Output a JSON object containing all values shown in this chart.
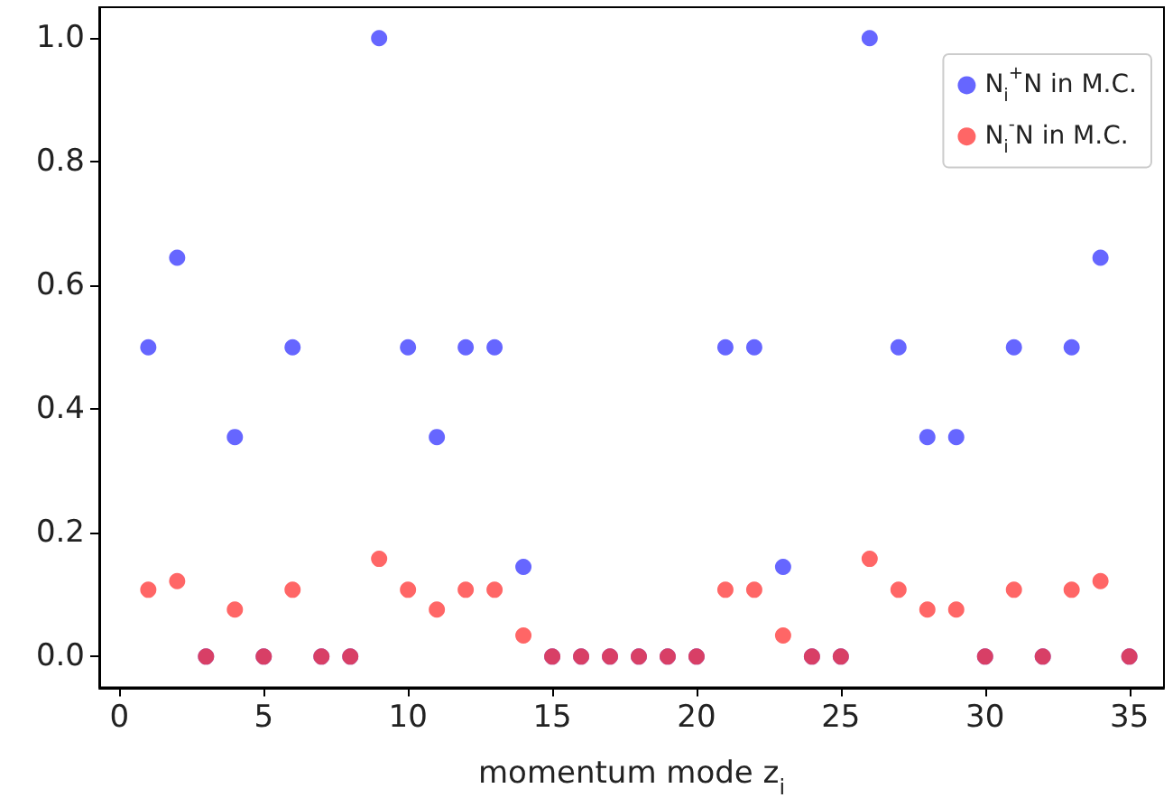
{
  "chart_data": {
    "type": "scatter",
    "xlabel": "momentum mode z$_{i}$",
    "x": [
      1,
      2,
      3,
      4,
      5,
      6,
      7,
      8,
      9,
      10,
      11,
      12,
      13,
      14,
      15,
      16,
      17,
      18,
      19,
      20,
      21,
      22,
      23,
      24,
      25,
      26,
      27,
      28,
      29,
      30,
      31,
      32,
      33,
      34,
      35
    ],
    "series": [
      {
        "name": "N$_{i}$$^{+}$N in M.C.",
        "color": "#3333ff",
        "values": [
          0.5,
          0.645,
          0,
          0.355,
          0,
          0.5,
          0,
          0,
          1.0,
          0.5,
          0.355,
          0.5,
          0.5,
          0.145,
          0,
          0,
          0,
          0,
          0,
          0,
          0.5,
          0.5,
          0.145,
          0,
          0,
          1.0,
          0.5,
          0.355,
          0.355,
          0,
          0.5,
          0,
          0.5,
          0.645,
          0
        ]
      },
      {
        "name": "N$_{i}$$^{-}$N in M.C.",
        "color": "#ff3333",
        "values": [
          0.108,
          0.122,
          0,
          0.076,
          0,
          0.108,
          0,
          0,
          0.158,
          0.108,
          0.076,
          0.108,
          0.108,
          0.034,
          0,
          0,
          0,
          0,
          0,
          0,
          0.108,
          0.108,
          0.034,
          0,
          0,
          0.158,
          0.108,
          0.076,
          0.076,
          0,
          0.108,
          0,
          0.108,
          0.122,
          0
        ]
      }
    ],
    "xlim": [
      -0.7,
      36.2
    ],
    "xticks": [
      0,
      5,
      10,
      15,
      20,
      25,
      30,
      35
    ],
    "ylim": [
      -0.05,
      1.05
    ],
    "yticks": [
      {
        "value": 0,
        "label": "0.0"
      },
      0.2,
      0.4,
      0.6,
      0.8,
      {
        "value": 1,
        "label": "1.0"
      }
    ],
    "marker": "circle",
    "grid": false,
    "legend": "top right"
  }
}
